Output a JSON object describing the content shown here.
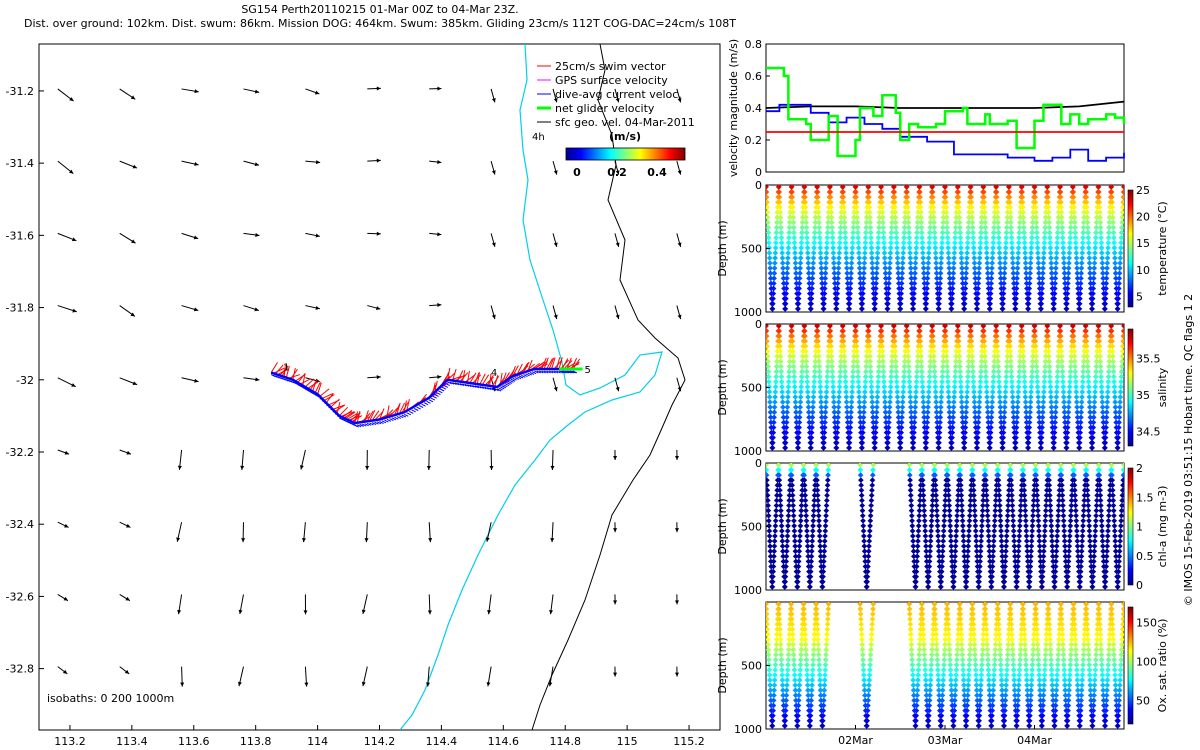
{
  "header": {
    "line1": "SG154 Perth20110215 01-Mar 00Z to 04-Mar 23Z.",
    "line2": "Dist. over ground: 102km. Dist. swum: 86km. Mission DOG: 464km. Swum: 385km. Gliding 23cm/s 112T COG-DAC=24cm/s 108T"
  },
  "credit": "© IMOS 15-Feb-2019 03:51:15 Hobart time. QC flags 1 2",
  "colors": {
    "swim_vector": "#ff0000",
    "gps_velocity": "#ff00ff",
    "dac": "#0000ff",
    "net_velocity": "#00ff00",
    "geo_velocity": "#000000",
    "isobath": "#00d0e8",
    "ref_line": "#ff0000"
  },
  "chart_data": [
    {
      "type": "scatter",
      "title": "",
      "xlabel": "",
      "ylabel": "",
      "xlim": [
        113.1,
        115.3
      ],
      "ylim": [
        -32.97,
        -31.07
      ],
      "xticks": [
        "113.2",
        "113.4",
        "113.6",
        "113.8",
        "114",
        "114.2",
        "114.4",
        "114.6",
        "114.8",
        "115",
        "115.2"
      ],
      "yticks": [
        "-31.2",
        "-31.4",
        "-31.6",
        "-31.8",
        "-32",
        "-32.2",
        "-32.4",
        "-32.6",
        "-32.8"
      ],
      "legend": {
        "position": "top-right",
        "entries": [
          "25cm/s swim vector",
          "GPS surface velocity",
          "dive-avg current veloc.",
          "net glider velocity",
          "sfc geo. vel. 04-Mar-2011"
        ]
      },
      "colorbar": {
        "label": "(m/s)",
        "ticks": [
          "0",
          "0.2",
          "0.4"
        ]
      },
      "isobath_label": "isobaths: 0   200   1000m",
      "track_labels": [
        "1",
        "4",
        "5",
        "4h"
      ],
      "track": [
        [
          113.85,
          -31.98
        ],
        [
          113.92,
          -32.0
        ],
        [
          114.0,
          -32.04
        ],
        [
          114.07,
          -32.1
        ],
        [
          114.12,
          -32.12
        ],
        [
          114.2,
          -32.11
        ],
        [
          114.28,
          -32.09
        ],
        [
          114.36,
          -32.05
        ],
        [
          114.42,
          -32.0
        ],
        [
          114.5,
          -32.01
        ],
        [
          114.58,
          -32.02
        ],
        [
          114.63,
          -31.99
        ],
        [
          114.7,
          -31.97
        ],
        [
          114.78,
          -31.97
        ],
        [
          114.83,
          -31.97
        ]
      ]
    },
    {
      "type": "line",
      "ylabel": "velocity magnitude (m/s)",
      "ylim": [
        0,
        0.8
      ],
      "yticks": [
        "0",
        "0.2",
        "0.4",
        "0.6",
        "0.8"
      ],
      "x_unit": "days since 01-Mar 00Z",
      "xlim": [
        0,
        4
      ],
      "series": [
        {
          "name": "black",
          "x": [
            0,
            0.5,
            1,
            1.5,
            2,
            2.5,
            3,
            3.5,
            4
          ],
          "values": [
            0.4,
            0.41,
            0.41,
            0.4,
            0.4,
            0.4,
            0.4,
            0.41,
            0.44
          ]
        },
        {
          "name": "blue",
          "x": [
            0,
            0.15,
            0.3,
            0.5,
            0.7,
            0.9,
            1.1,
            1.3,
            1.5,
            1.8,
            2.1,
            2.4,
            2.7,
            3.0,
            3.2,
            3.4,
            3.6,
            3.8,
            4.0
          ],
          "values": [
            0.38,
            0.42,
            0.42,
            0.37,
            0.31,
            0.34,
            0.3,
            0.27,
            0.22,
            0.19,
            0.11,
            0.11,
            0.09,
            0.07,
            0.09,
            0.14,
            0.07,
            0.09,
            0.12
          ]
        },
        {
          "name": "green",
          "x": [
            0,
            0.2,
            0.25,
            0.45,
            0.5,
            0.7,
            0.8,
            1.0,
            1.05,
            1.2,
            1.3,
            1.45,
            1.5,
            1.6,
            1.7,
            1.9,
            2.0,
            2.2,
            2.25,
            2.45,
            2.5,
            2.7,
            2.8,
            3.0,
            3.1,
            3.3,
            3.4,
            3.5,
            3.6,
            3.8,
            3.9,
            4.0
          ],
          "values": [
            0.65,
            0.6,
            0.33,
            0.3,
            0.2,
            0.35,
            0.1,
            0.2,
            0.4,
            0.35,
            0.48,
            0.37,
            0.2,
            0.3,
            0.28,
            0.3,
            0.38,
            0.4,
            0.3,
            0.36,
            0.3,
            0.32,
            0.15,
            0.32,
            0.42,
            0.3,
            0.36,
            0.3,
            0.33,
            0.36,
            0.34,
            0.3
          ]
        },
        {
          "name": "red",
          "x": [
            0,
            4
          ],
          "values": [
            0.25,
            0.25
          ]
        }
      ]
    },
    {
      "type": "scatter",
      "ylabel": "Depth (m)",
      "colorbar_label": "temperature (°C)",
      "ylim": [
        1000,
        0
      ],
      "yticks": [
        "0",
        "500",
        "1000"
      ],
      "cticks": [
        "5",
        "10",
        "15",
        "20",
        "25"
      ],
      "crange": [
        3,
        25
      ],
      "profiles": 28
    },
    {
      "type": "scatter",
      "ylabel": "Depth (m)",
      "colorbar_label": "salinity",
      "ylim": [
        1000,
        0
      ],
      "yticks": [
        "0",
        "500",
        "1000"
      ],
      "cticks": [
        "34.5",
        "35",
        "35.5"
      ],
      "crange": [
        34.3,
        35.9
      ],
      "profiles": 28
    },
    {
      "type": "scatter",
      "ylabel": "Depth (m)",
      "colorbar_label": "chl-a (mg m-3)",
      "ylim": [
        1000,
        0
      ],
      "yticks": [
        "0",
        "500",
        "1000"
      ],
      "cticks": [
        "0",
        "0.5",
        "1",
        "1.5",
        "2"
      ],
      "crange": [
        0,
        2
      ],
      "segments": [
        [
          0,
          0.7
        ],
        [
          1.05,
          1.2
        ],
        [
          1.6,
          4
        ]
      ]
    },
    {
      "type": "scatter",
      "ylabel": "Depth (m)",
      "colorbar_label": "Ox. sat. ratio (%)",
      "ylim": [
        1000,
        0
      ],
      "yticks": [
        "500",
        "1000"
      ],
      "cticks": [
        "50",
        "100",
        "150"
      ],
      "crange": [
        20,
        170
      ],
      "segments": [
        [
          0,
          0.7
        ],
        [
          1.05,
          1.2
        ],
        [
          1.6,
          4
        ]
      ],
      "xticks": [
        "02Mar",
        "03Mar",
        "04Mar"
      ]
    }
  ]
}
